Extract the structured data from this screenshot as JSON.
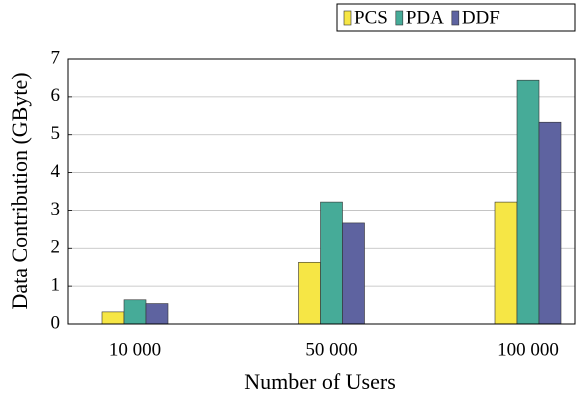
{
  "chart_data": {
    "type": "bar",
    "x_label": "Number of Users",
    "y_label": "Data Contribution (GByte)",
    "categories": [
      "10 000",
      "50 000",
      "100 000"
    ],
    "series": [
      {
        "name": "PCS",
        "color": "#f6e645",
        "values": [
          0.32,
          1.63,
          3.22
        ]
      },
      {
        "name": "PDA",
        "color": "#46ab98",
        "values": [
          0.64,
          3.22,
          6.44
        ]
      },
      {
        "name": "DDF",
        "color": "#5e63a0",
        "values": [
          0.54,
          2.67,
          5.33
        ]
      }
    ],
    "ylim": [
      0,
      7
    ],
    "yticks": [
      0,
      1,
      2,
      3,
      4,
      5,
      6,
      7
    ],
    "grid": true,
    "legend": "top-right"
  }
}
